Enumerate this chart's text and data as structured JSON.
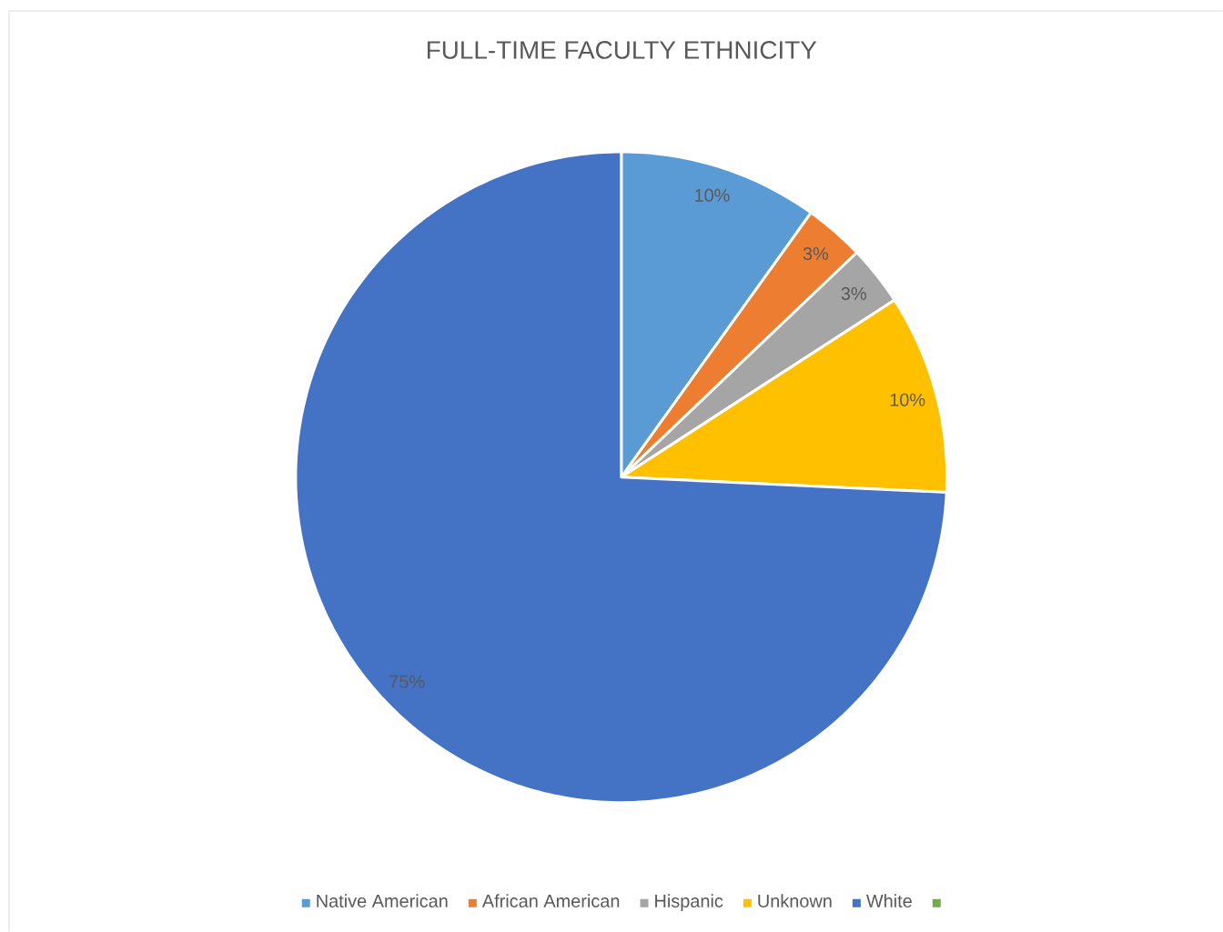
{
  "chart_data": {
    "type": "pie",
    "title": "FULL-TIME FACULTY ETHNICITY",
    "categories": [
      "Native American",
      "African American",
      "Hispanic",
      "Unknown",
      "White",
      null
    ],
    "values": [
      10,
      3,
      3,
      10,
      75,
      0
    ],
    "value_labels": [
      "10%",
      "3%",
      "3%",
      "10%",
      "75%",
      null
    ],
    "colors": [
      "#5b9bd5",
      "#ed7d31",
      "#a5a5a5",
      "#ffc000",
      "#4472c4",
      "#70ad47"
    ],
    "legend": "bottom"
  }
}
